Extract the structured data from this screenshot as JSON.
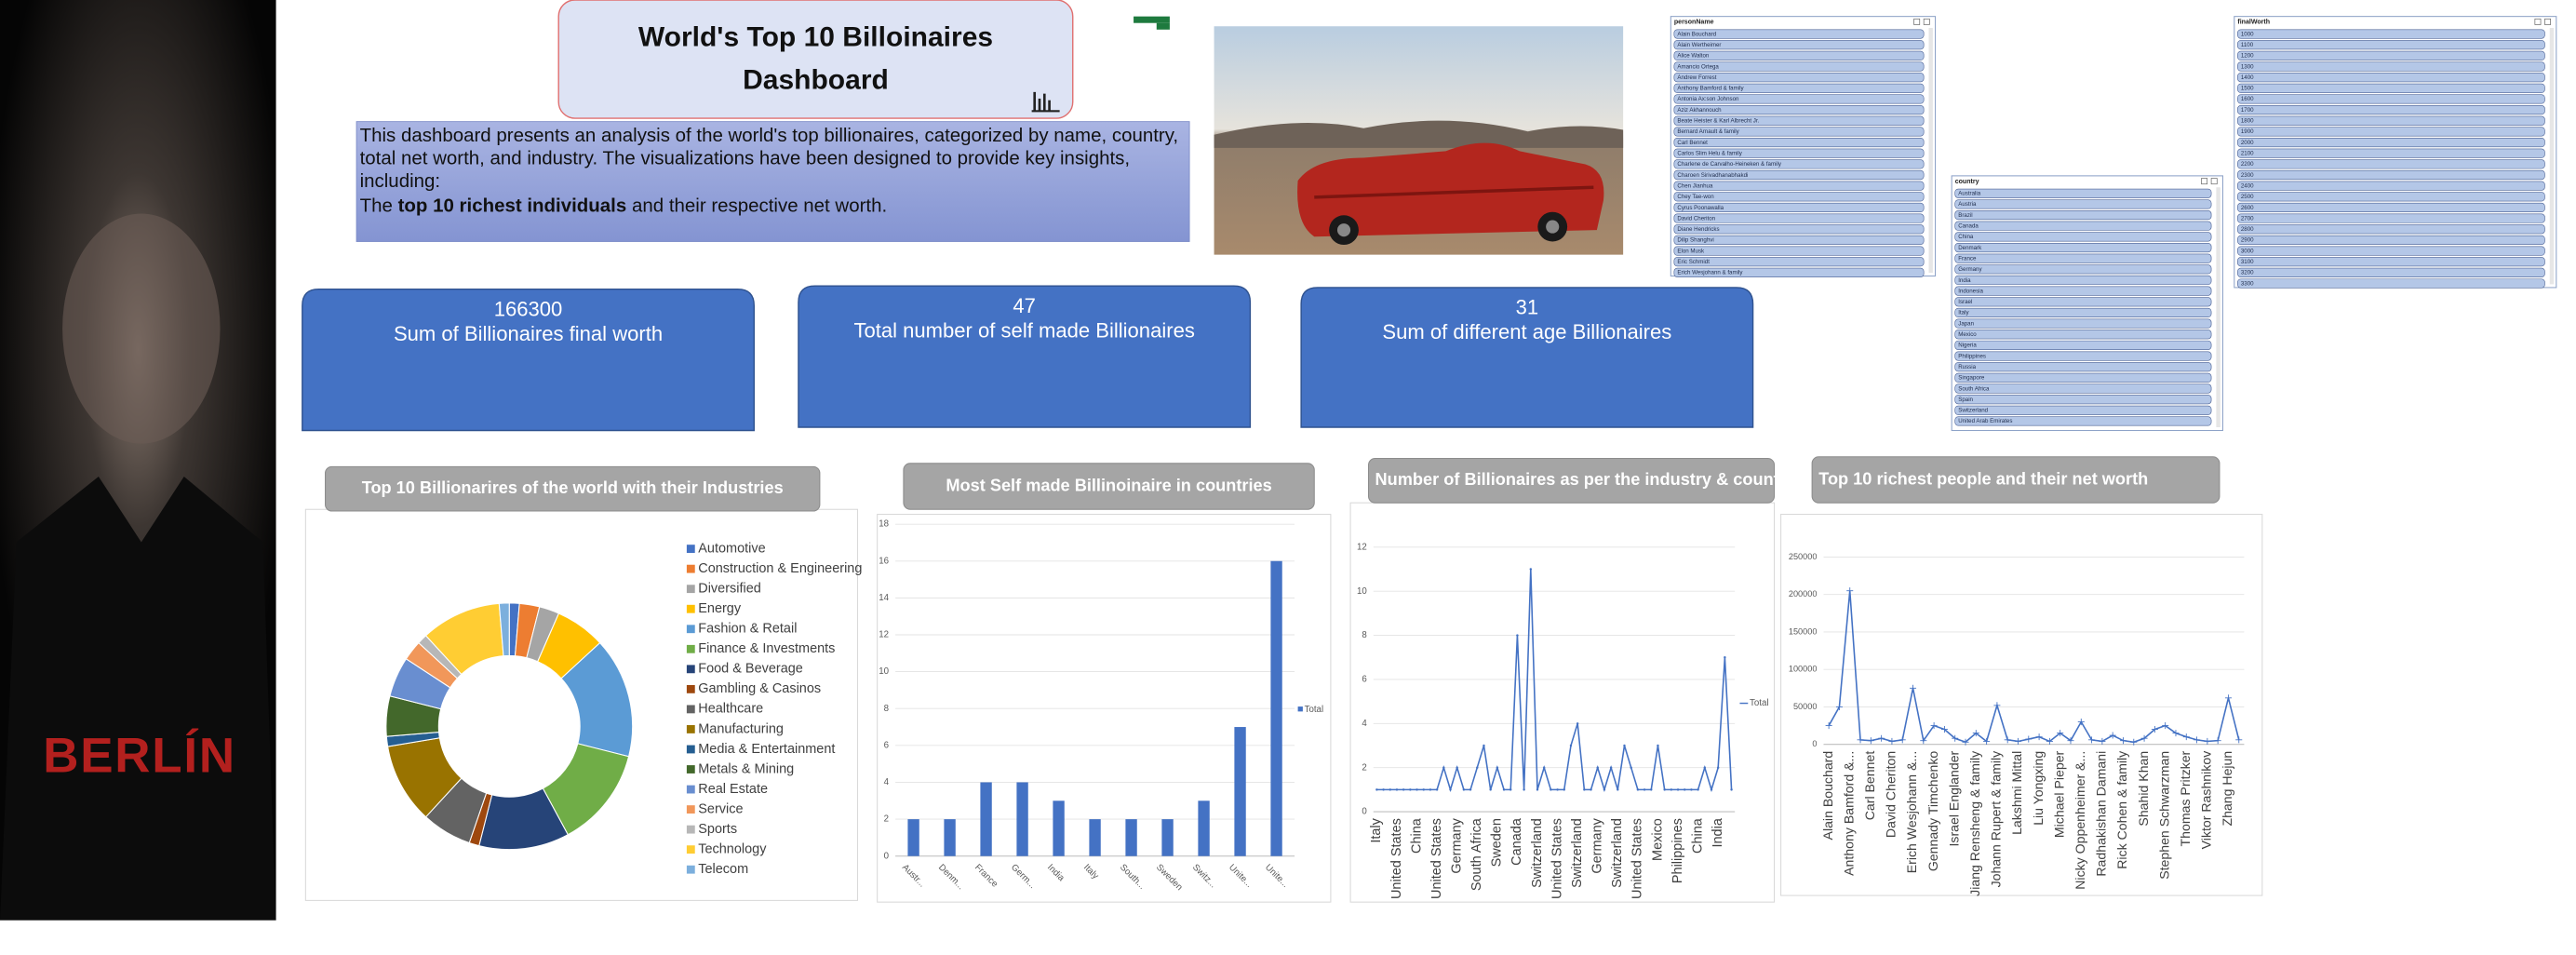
{
  "poster": {
    "text": "BERLÍN"
  },
  "header": {
    "title": "World's Top 10 Billoinaires Dashboard"
  },
  "description": {
    "intro": "This dashboard presents an analysis of the world's top billionaires, categorized by name, country, total net worth, and industry. The visualizations have been designed to provide key insights, including:",
    "lead": "The",
    "bold": "top 10 richest individuals",
    "rest": "and their respective net worth."
  },
  "slicers": [
    {
      "title": "personName",
      "items": [
        "Alain Bouchard",
        "Alain Wertheimer",
        "Alice Walton",
        "Amancio Ortega",
        "Andrew Forrest",
        "Anthony Bamford & family",
        "Antonia Ax:son Johnson",
        "Aziz Akhannouch",
        "Beate Heister & Karl Albrecht Jr.",
        "Bernard Arnault & family",
        "Carl Bennet",
        "Carlos Slim Helu & family",
        "Charlene de Carvalho-Heineken & family",
        "Charoen Sirivadhanabhakdi",
        "Chen Jianhua",
        "Chey Tae-won",
        "Cyrus Poonawalla",
        "David Cheriton",
        "Diane Hendricks",
        "Dilip Shanghvi",
        "Elon Musk",
        "Eric Schmidt",
        "Erich Wesjohann & family"
      ]
    },
    {
      "title": "country",
      "items": [
        "Australia",
        "Austria",
        "Brazil",
        "Canada",
        "China",
        "Denmark",
        "France",
        "Germany",
        "India",
        "Indonesia",
        "Israel",
        "Italy",
        "Japan",
        "Mexico",
        "Nigeria",
        "Philippines",
        "Russia",
        "Singapore",
        "South Africa",
        "Spain",
        "Switzerland",
        "United Arab Emirates"
      ]
    },
    {
      "title": "finalWorth",
      "items": [
        1000,
        1100,
        1200,
        1300,
        1400,
        1500,
        1600,
        1700,
        1800,
        1900,
        2000,
        2100,
        2200,
        2300,
        2400,
        2500,
        2600,
        2700,
        2800,
        2900,
        3000,
        3100,
        3200,
        3300
      ]
    }
  ],
  "kpis": [
    {
      "value": 166300,
      "label": "Sum of Billionaires final worth"
    },
    {
      "value": 47,
      "label": "Total number of self made Billionaires"
    },
    {
      "value": 31,
      "label": "Sum of different age Billionaires"
    }
  ],
  "chart_data": [
    {
      "type": "pie",
      "donut": true,
      "title": "Top 10  Billionarires of the world with their Industries",
      "categories": [
        "Automotive",
        "Construction & Engineering",
        "Diversified",
        "Energy",
        "Fashion & Retail",
        "Finance & Investments",
        "Food & Beverage",
        "Gambling & Casinos",
        "Healthcare",
        "Manufacturing",
        "Media & Entertainment",
        "Metals & Mining",
        "Real Estate",
        "Service",
        "Sports",
        "Technology",
        "Telecom"
      ],
      "values": [
        1,
        2,
        2,
        5,
        12,
        10,
        9,
        1,
        5,
        8,
        1,
        4,
        4,
        2,
        1,
        8,
        1
      ],
      "colors": [
        "#4472c4",
        "#ed7d31",
        "#a5a5a5",
        "#ffc000",
        "#5b9bd5",
        "#70ad47",
        "#264478",
        "#9e480e",
        "#636363",
        "#997300",
        "#255e91",
        "#43682b",
        "#698ed0",
        "#f1975a",
        "#b7b7b7",
        "#ffcd33",
        "#7cafdd"
      ],
      "legend": "right"
    },
    {
      "type": "bar",
      "title": "Most Self made Billinoinaire in countries",
      "categories": [
        "Austr...",
        "Denm...",
        "France",
        "Germ...",
        "India",
        "Italy",
        "South...",
        "Sweden",
        "Switz...",
        "Unite...",
        "Unite..."
      ],
      "series": [
        {
          "name": "Total",
          "color": "#4472c4",
          "values": [
            2,
            2,
            4,
            4,
            3,
            2,
            2,
            2,
            3,
            7,
            16
          ]
        }
      ],
      "ylim": [
        0,
        18
      ],
      "yticks": [
        0,
        2,
        4,
        6,
        8,
        10,
        12,
        14,
        16,
        18
      ],
      "grid": true,
      "legend": "right"
    },
    {
      "type": "line",
      "title": "Number of Billionaires as per the industry & country",
      "categories": [
        "Italy",
        null,
        null,
        "United States",
        null,
        null,
        "China",
        null,
        null,
        "United States",
        null,
        null,
        "Germany",
        null,
        null,
        "South Africa",
        null,
        null,
        "Sweden",
        null,
        null,
        "Canada",
        null,
        null,
        "Switzerland",
        null,
        null,
        "United States",
        null,
        null,
        "Switzerland",
        null,
        null,
        "Germany",
        null,
        null,
        "Switzerland",
        null,
        null,
        "United States",
        null,
        null,
        "Mexico",
        null,
        null,
        "Philippines",
        null,
        null,
        "China",
        null,
        null,
        "India",
        null,
        null
      ],
      "series": [
        {
          "name": "Total",
          "color": "#4472c4",
          "values": [
            1,
            1,
            1,
            1,
            1,
            1,
            1,
            1,
            1,
            1,
            2,
            1,
            2,
            1,
            1,
            2,
            3,
            1,
            2,
            1,
            1,
            8,
            1,
            11,
            1,
            2,
            1,
            1,
            1,
            3,
            4,
            1,
            1,
            2,
            1,
            2,
            1,
            3,
            2,
            1,
            1,
            1,
            3,
            1,
            1,
            1,
            1,
            1,
            1,
            2,
            1,
            2,
            7,
            1
          ]
        }
      ],
      "ylim": [
        0,
        12
      ],
      "yticks": [
        0,
        2,
        4,
        6,
        8,
        10,
        12
      ],
      "grid": true,
      "legend": "right"
    },
    {
      "type": "line",
      "markers": true,
      "title": "Top 10 richest people and their net worth",
      "categories": [
        "Alain Bouchard",
        null,
        "Anthony Bamford &...",
        null,
        "Carl Bennet",
        null,
        "David Cheriton",
        null,
        "Erich Wesjohann &...",
        null,
        "Gennady Timchenko",
        null,
        "Israel Englander",
        null,
        "Jiang Rensheng & family",
        null,
        "Johann Rupert & family",
        null,
        "Lakshmi Mittal",
        null,
        "Liu Yongxing",
        null,
        "Michael Pieper",
        null,
        "Nicky Oppenheimer &...",
        null,
        "Radhakishan Damani",
        null,
        "Rick Cohen & family",
        null,
        "Shahid Khan",
        null,
        "Stephen Schwarzman",
        null,
        "Thomas Pritzker",
        null,
        "Viktor Rashnikov",
        null,
        "Zhang Hejun",
        null
      ],
      "values": [
        25000,
        50000,
        205000,
        6000,
        5000,
        8000,
        4000,
        6000,
        75000,
        5000,
        25000,
        20000,
        8000,
        3000,
        15000,
        4000,
        52000,
        6000,
        4000,
        7000,
        10000,
        4000,
        15000,
        5000,
        30000,
        6000,
        4000,
        12000,
        5000,
        3000,
        8000,
        20000,
        25000,
        15000,
        10000,
        6000,
        4000,
        5000,
        62000,
        6000
      ],
      "color": "#4472c4",
      "ylim": [
        0,
        250000
      ],
      "yticks": [
        0,
        50000,
        100000,
        150000,
        200000,
        250000
      ],
      "grid": true
    }
  ]
}
